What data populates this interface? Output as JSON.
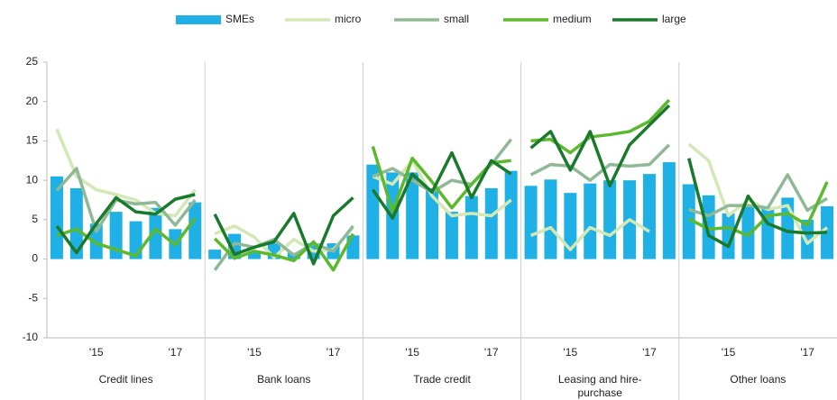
{
  "chart_data": {
    "type": "bar-line",
    "groups": [
      "Credit lines",
      "Bank loans",
      "Trade credit",
      "Leasing and hire-purchase",
      "Other loans"
    ],
    "categories": [
      null,
      null,
      "'15",
      null,
      null,
      null,
      "'17",
      null
    ],
    "ylim": [
      -10,
      25
    ],
    "yticks": [
      -10,
      -5,
      0,
      5,
      10,
      15,
      20,
      25
    ],
    "legend": "top",
    "series": [
      {
        "name": "SMEs",
        "kind": "bar",
        "color": "#1fb1e6",
        "values": [
          [
            10.5,
            9,
            4.5,
            6,
            4.8,
            6.5,
            3.8,
            7.2
          ],
          [
            1.2,
            3.2,
            1,
            2,
            0.8,
            2,
            2,
            3
          ],
          [
            12,
            11,
            11,
            9,
            6,
            8,
            9,
            11.2
          ],
          [
            9.3,
            10.1,
            8.4,
            9.6,
            10,
            10,
            10.8,
            12.3
          ],
          [
            9.5,
            8.1,
            5.8,
            6.6,
            6.5,
            7.8,
            5,
            6.7
          ]
        ]
      },
      {
        "name": "micro",
        "kind": "line",
        "color": "#d3e8b4",
        "values": [
          [
            16.5,
            10.5,
            8.8,
            8.2,
            7.5,
            5.8,
            5.5,
            8.8
          ],
          [
            3.2,
            4.2,
            2.8,
            0.2,
            2.5,
            1,
            1.2,
            4
          ],
          [
            10.5,
            9.5,
            12.5,
            8,
            5.5,
            5.8,
            5.5,
            7.5
          ],
          [
            3,
            4,
            1.2,
            4,
            3,
            5,
            3.5,
            null
          ],
          [
            14.6,
            12.5,
            5.5,
            7.5,
            6.3,
            6.8,
            2,
            4
          ]
        ]
      },
      {
        "name": "small",
        "kind": "line",
        "color": "#8fb996",
        "values": [
          [
            8.7,
            11.5,
            3.5,
            7.5,
            7,
            7.2,
            4.3,
            7.5
          ],
          [
            -1.4,
            2,
            1.5,
            2.5,
            0.5,
            2,
            1,
            4.2
          ],
          [
            10.5,
            11.5,
            10,
            8.5,
            10,
            9.5,
            12,
            15.2
          ],
          [
            10.7,
            12,
            11.8,
            10,
            12,
            11.8,
            12,
            14.5
          ],
          [
            6.3,
            5.5,
            6.8,
            6.8,
            6.5,
            10.7,
            6.2,
            7.7
          ]
        ]
      },
      {
        "name": "medium",
        "kind": "line",
        "color": "#5cb82c",
        "values": [
          [
            3,
            3.8,
            2,
            1.2,
            0.4,
            3.8,
            1.8,
            5.2
          ],
          [
            2.6,
            0.1,
            1,
            0.5,
            -0.2,
            2.2,
            -1.4,
            3.2
          ],
          [
            14.3,
            6,
            12.8,
            9.8,
            6.5,
            9.5,
            12.2,
            12.5
          ],
          [
            15,
            15.2,
            13.5,
            15.5,
            15.8,
            16.2,
            17.5,
            20.2
          ],
          [
            5.1,
            3.8,
            4,
            3,
            5.5,
            5.8,
            4.3,
            9.8
          ]
        ]
      },
      {
        "name": "large",
        "kind": "line",
        "color": "#1a7a2c",
        "values": [
          [
            4.2,
            0.8,
            4.5,
            7.8,
            6,
            5.7,
            7.6,
            8.2
          ],
          [
            5.7,
            0.6,
            1.5,
            2.2,
            5.8,
            -0.6,
            5.5,
            7.8
          ],
          [
            8.8,
            5.2,
            10.8,
            8.5,
            13.5,
            7.8,
            12.5,
            10.8
          ],
          [
            14.1,
            16.2,
            11.3,
            16.2,
            9.3,
            14.5,
            17,
            19.5
          ],
          [
            12.8,
            3,
            1.6,
            8,
            4.5,
            3.5,
            3.3,
            3.4
          ]
        ]
      }
    ]
  }
}
